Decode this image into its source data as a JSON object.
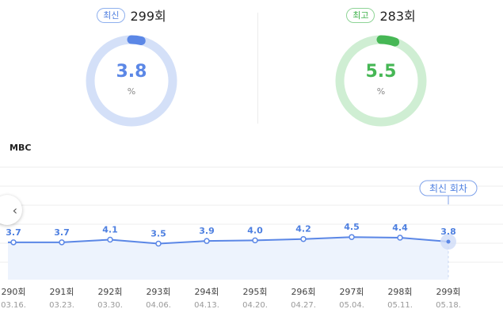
{
  "latest": {
    "badge": "최신",
    "episode": "299회",
    "value": "3.8",
    "unit": "%",
    "fraction": 0.038,
    "color": "#5b87e6",
    "track": "#d4e0f8"
  },
  "best": {
    "badge": "최고",
    "episode": "283회",
    "value": "5.5",
    "unit": "%",
    "fraction": 0.055,
    "color": "#46b755",
    "track": "#cfeed3"
  },
  "channel": "MBC",
  "colors": {
    "line": "#5b87e6",
    "fill": "#edf3fd",
    "label": "#4d7fe0",
    "tick": "#444",
    "date": "#999",
    "grid": "#ececec"
  },
  "icons": {
    "prev": "chevron-left-icon"
  },
  "nav_prev_glyph": "‹",
  "chart_data": {
    "type": "line",
    "categories": [
      "290회",
      "291회",
      "292회",
      "293회",
      "294회",
      "295회",
      "296회",
      "297회",
      "298회",
      "299회"
    ],
    "dates": [
      "03.16.",
      "03.23.",
      "03.30.",
      "04.06.",
      "04.13.",
      "04.20.",
      "04.27.",
      "05.04.",
      "05.11.",
      "05.18."
    ],
    "values": [
      3.7,
      3.7,
      4.1,
      3.5,
      3.9,
      4.0,
      4.2,
      4.5,
      4.4,
      3.8
    ],
    "highlight_label": "최신 회차",
    "highlight_index": 9
  }
}
